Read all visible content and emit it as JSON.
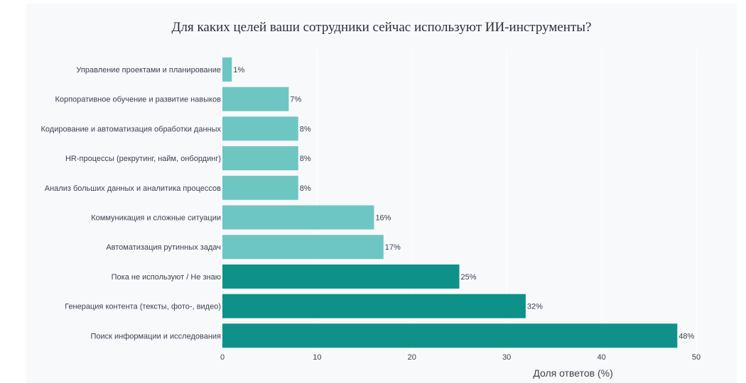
{
  "chart_data": {
    "type": "bar",
    "orientation": "horizontal",
    "title": "Для каких целей ваши сотрудники сейчас используют ИИ-инструменты?",
    "xlabel": "Доля ответов (%)",
    "ylabel": "",
    "xlim": [
      0,
      50
    ],
    "x_ticks": [
      "0",
      "10",
      "20",
      "30",
      "40",
      "50"
    ],
    "grid": "vertical",
    "categories": [
      "Управление проектами и планирование",
      "Корпоративное обучение и развитие навыков",
      "Кодирование и автоматизация обработки данных",
      "HR-процессы (рекрутинг, найм, онбординг)",
      "Анализ больших данных и аналитика процессов",
      "Коммуникация и сложные ситуации",
      "Автоматизация рутинных задач",
      "Пока не используют / Не знаю",
      "Генерация контента (тексты, фото-, видео)",
      "Поиск информации и исследования"
    ],
    "values": [
      1,
      7,
      8,
      8,
      8,
      16,
      17,
      25,
      32,
      48
    ],
    "value_labels": [
      "1%",
      "7%",
      "8%",
      "8%",
      "8%",
      "16%",
      "17%",
      "25%",
      "32%",
      "48%"
    ],
    "colors": {
      "light": "#6ec6c3",
      "dark": "#0e9188",
      "background": "#f7f9fb",
      "gridline": "#ffffff"
    },
    "highlighted_top": 3
  }
}
